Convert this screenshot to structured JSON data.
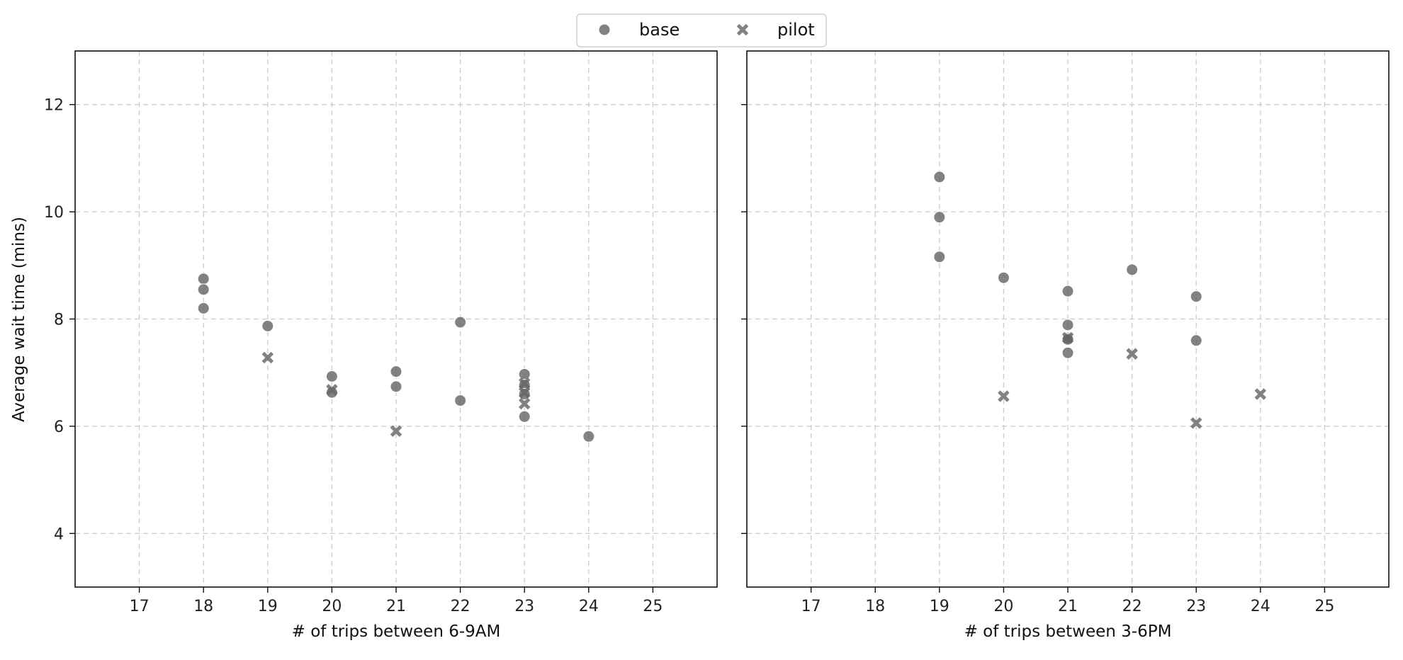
{
  "chart_data": {
    "type": "scatter",
    "legend": {
      "placement": "top-center",
      "entries": [
        {
          "name": "base",
          "marker": "circle",
          "color": "#666666"
        },
        {
          "name": "pilot",
          "marker": "x",
          "color": "#666666"
        }
      ]
    },
    "ylabel": "Average wait time (mins)",
    "ylim": [
      3,
      13
    ],
    "yticks": [
      4,
      6,
      8,
      10,
      12
    ],
    "xlim": [
      16,
      26
    ],
    "xticks": [
      17,
      18,
      19,
      20,
      21,
      22,
      23,
      24,
      25
    ],
    "grid": true,
    "panels": [
      {
        "xlabel": "# of trips between 6-9AM",
        "series": [
          {
            "name": "base",
            "points": [
              [
                18,
                8.75
              ],
              [
                18,
                8.55
              ],
              [
                18,
                8.2
              ],
              [
                19,
                7.87
              ],
              [
                20,
                6.93
              ],
              [
                20,
                6.63
              ],
              [
                21,
                7.02
              ],
              [
                21,
                6.74
              ],
              [
                22,
                7.94
              ],
              [
                22,
                6.48
              ],
              [
                23,
                6.97
              ],
              [
                23,
                6.77
              ],
              [
                23,
                6.6
              ],
              [
                23,
                6.18
              ],
              [
                24,
                5.81
              ]
            ]
          },
          {
            "name": "pilot",
            "points": [
              [
                19,
                7.28
              ],
              [
                20,
                6.68
              ],
              [
                21,
                5.91
              ],
              [
                23,
                6.8
              ],
              [
                23,
                6.63
              ],
              [
                23,
                6.42
              ]
            ]
          }
        ]
      },
      {
        "xlabel": "# of trips between 3-6PM",
        "series": [
          {
            "name": "base",
            "points": [
              [
                19,
                10.65
              ],
              [
                19,
                9.9
              ],
              [
                19,
                9.16
              ],
              [
                20,
                8.77
              ],
              [
                21,
                8.52
              ],
              [
                21,
                7.89
              ],
              [
                21,
                7.64
              ],
              [
                21,
                7.62
              ],
              [
                21,
                7.37
              ],
              [
                22,
                8.92
              ],
              [
                23,
                8.42
              ],
              [
                23,
                7.6
              ]
            ]
          },
          {
            "name": "pilot",
            "points": [
              [
                20,
                6.56
              ],
              [
                21,
                7.65
              ],
              [
                22,
                7.35
              ],
              [
                23,
                6.06
              ],
              [
                24,
                6.6
              ]
            ]
          }
        ]
      }
    ]
  }
}
